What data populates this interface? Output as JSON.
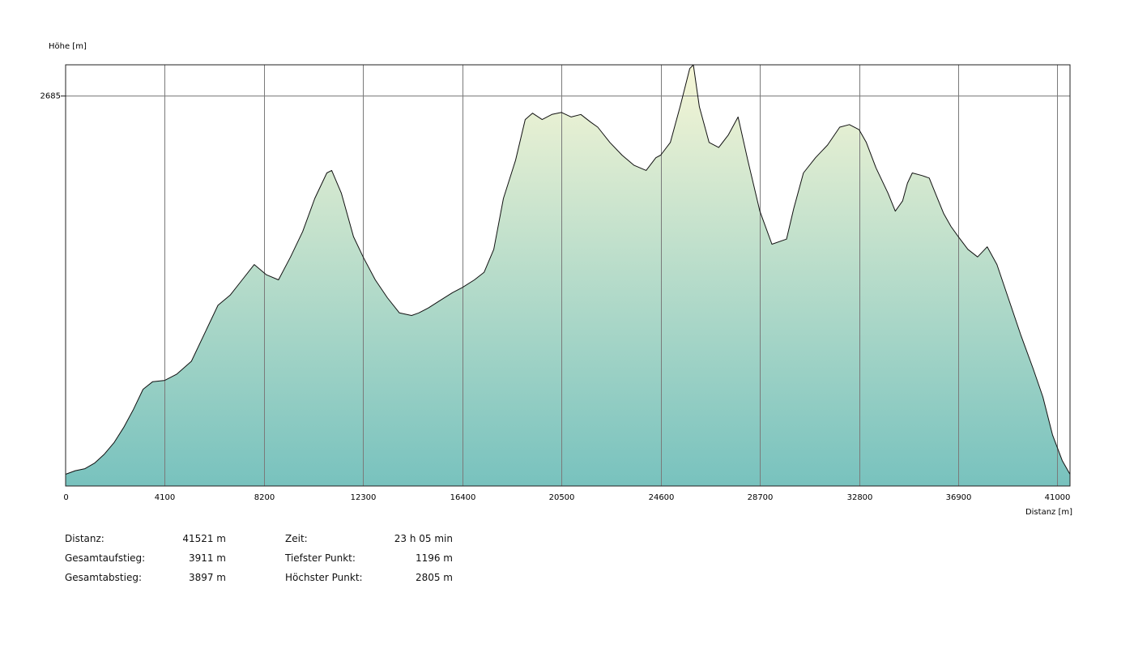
{
  "chart_data": {
    "type": "area",
    "ylabel": "Höhe [m]",
    "xlabel": "Distanz [m]",
    "xlim": [
      0,
      41521
    ],
    "ylim": [
      1150,
      2805
    ],
    "x_ticks": [
      0,
      4100,
      8200,
      12300,
      16400,
      20500,
      24600,
      28700,
      32800,
      36900,
      41000
    ],
    "y_ticks": [
      2685
    ],
    "grid": true,
    "colors": {
      "fill_top": "#f6f6d6",
      "fill_bottom": "#78c2be",
      "line": "#111111",
      "grid": "#7a7a7a"
    },
    "x": [
      0,
      400,
      800,
      1200,
      1600,
      2000,
      2400,
      2800,
      3200,
      3600,
      4100,
      4600,
      5200,
      5800,
      6300,
      6800,
      7300,
      7800,
      8300,
      8800,
      9300,
      9800,
      10300,
      10800,
      11000,
      11400,
      11900,
      12300,
      12800,
      13300,
      13800,
      14300,
      14600,
      15000,
      15500,
      16000,
      16400,
      16900,
      17300,
      17700,
      18100,
      18600,
      19000,
      19300,
      19700,
      20100,
      20500,
      20900,
      21300,
      21700,
      22000,
      22500,
      23000,
      23500,
      24000,
      24400,
      24600,
      25000,
      25400,
      25800,
      25950,
      26200,
      26600,
      27000,
      27400,
      27800,
      28200,
      28700,
      29200,
      29800,
      30100,
      30500,
      31000,
      31500,
      32000,
      32400,
      32800,
      33100,
      33500,
      34000,
      34300,
      34600,
      34800,
      35000,
      35400,
      35700,
      36000,
      36300,
      36600,
      36900,
      37300,
      37700,
      38100,
      38500,
      39000,
      39500,
      40000,
      40400,
      40800,
      41200,
      41521
    ],
    "y": [
      1196,
      1210,
      1218,
      1240,
      1275,
      1320,
      1380,
      1450,
      1530,
      1560,
      1565,
      1590,
      1640,
      1760,
      1860,
      1900,
      1960,
      2020,
      1980,
      1960,
      2050,
      2150,
      2280,
      2380,
      2390,
      2300,
      2130,
      2050,
      1960,
      1890,
      1830,
      1820,
      1830,
      1850,
      1880,
      1910,
      1930,
      1960,
      1990,
      2080,
      2280,
      2430,
      2590,
      2615,
      2590,
      2610,
      2618,
      2600,
      2610,
      2580,
      2560,
      2500,
      2450,
      2410,
      2390,
      2440,
      2450,
      2500,
      2640,
      2790,
      2805,
      2640,
      2500,
      2480,
      2530,
      2600,
      2430,
      2230,
      2100,
      2120,
      2240,
      2380,
      2440,
      2490,
      2560,
      2570,
      2550,
      2500,
      2400,
      2300,
      2230,
      2270,
      2340,
      2380,
      2370,
      2360,
      2290,
      2220,
      2170,
      2130,
      2080,
      2050,
      2090,
      2020,
      1880,
      1740,
      1610,
      1500,
      1350,
      1250,
      1196
    ]
  },
  "stats": {
    "left": [
      {
        "label": "Distanz:",
        "value": "41521 m"
      },
      {
        "label": "Gesamtaufstieg:",
        "value": "3911 m"
      },
      {
        "label": "Gesamtabstieg:",
        "value": "3897 m"
      }
    ],
    "right": [
      {
        "label": "Zeit:",
        "value": "23 h 05 min"
      },
      {
        "label": "Tiefster Punkt:",
        "value": "1196 m"
      },
      {
        "label": "Höchster Punkt:",
        "value": "2805 m"
      }
    ]
  }
}
